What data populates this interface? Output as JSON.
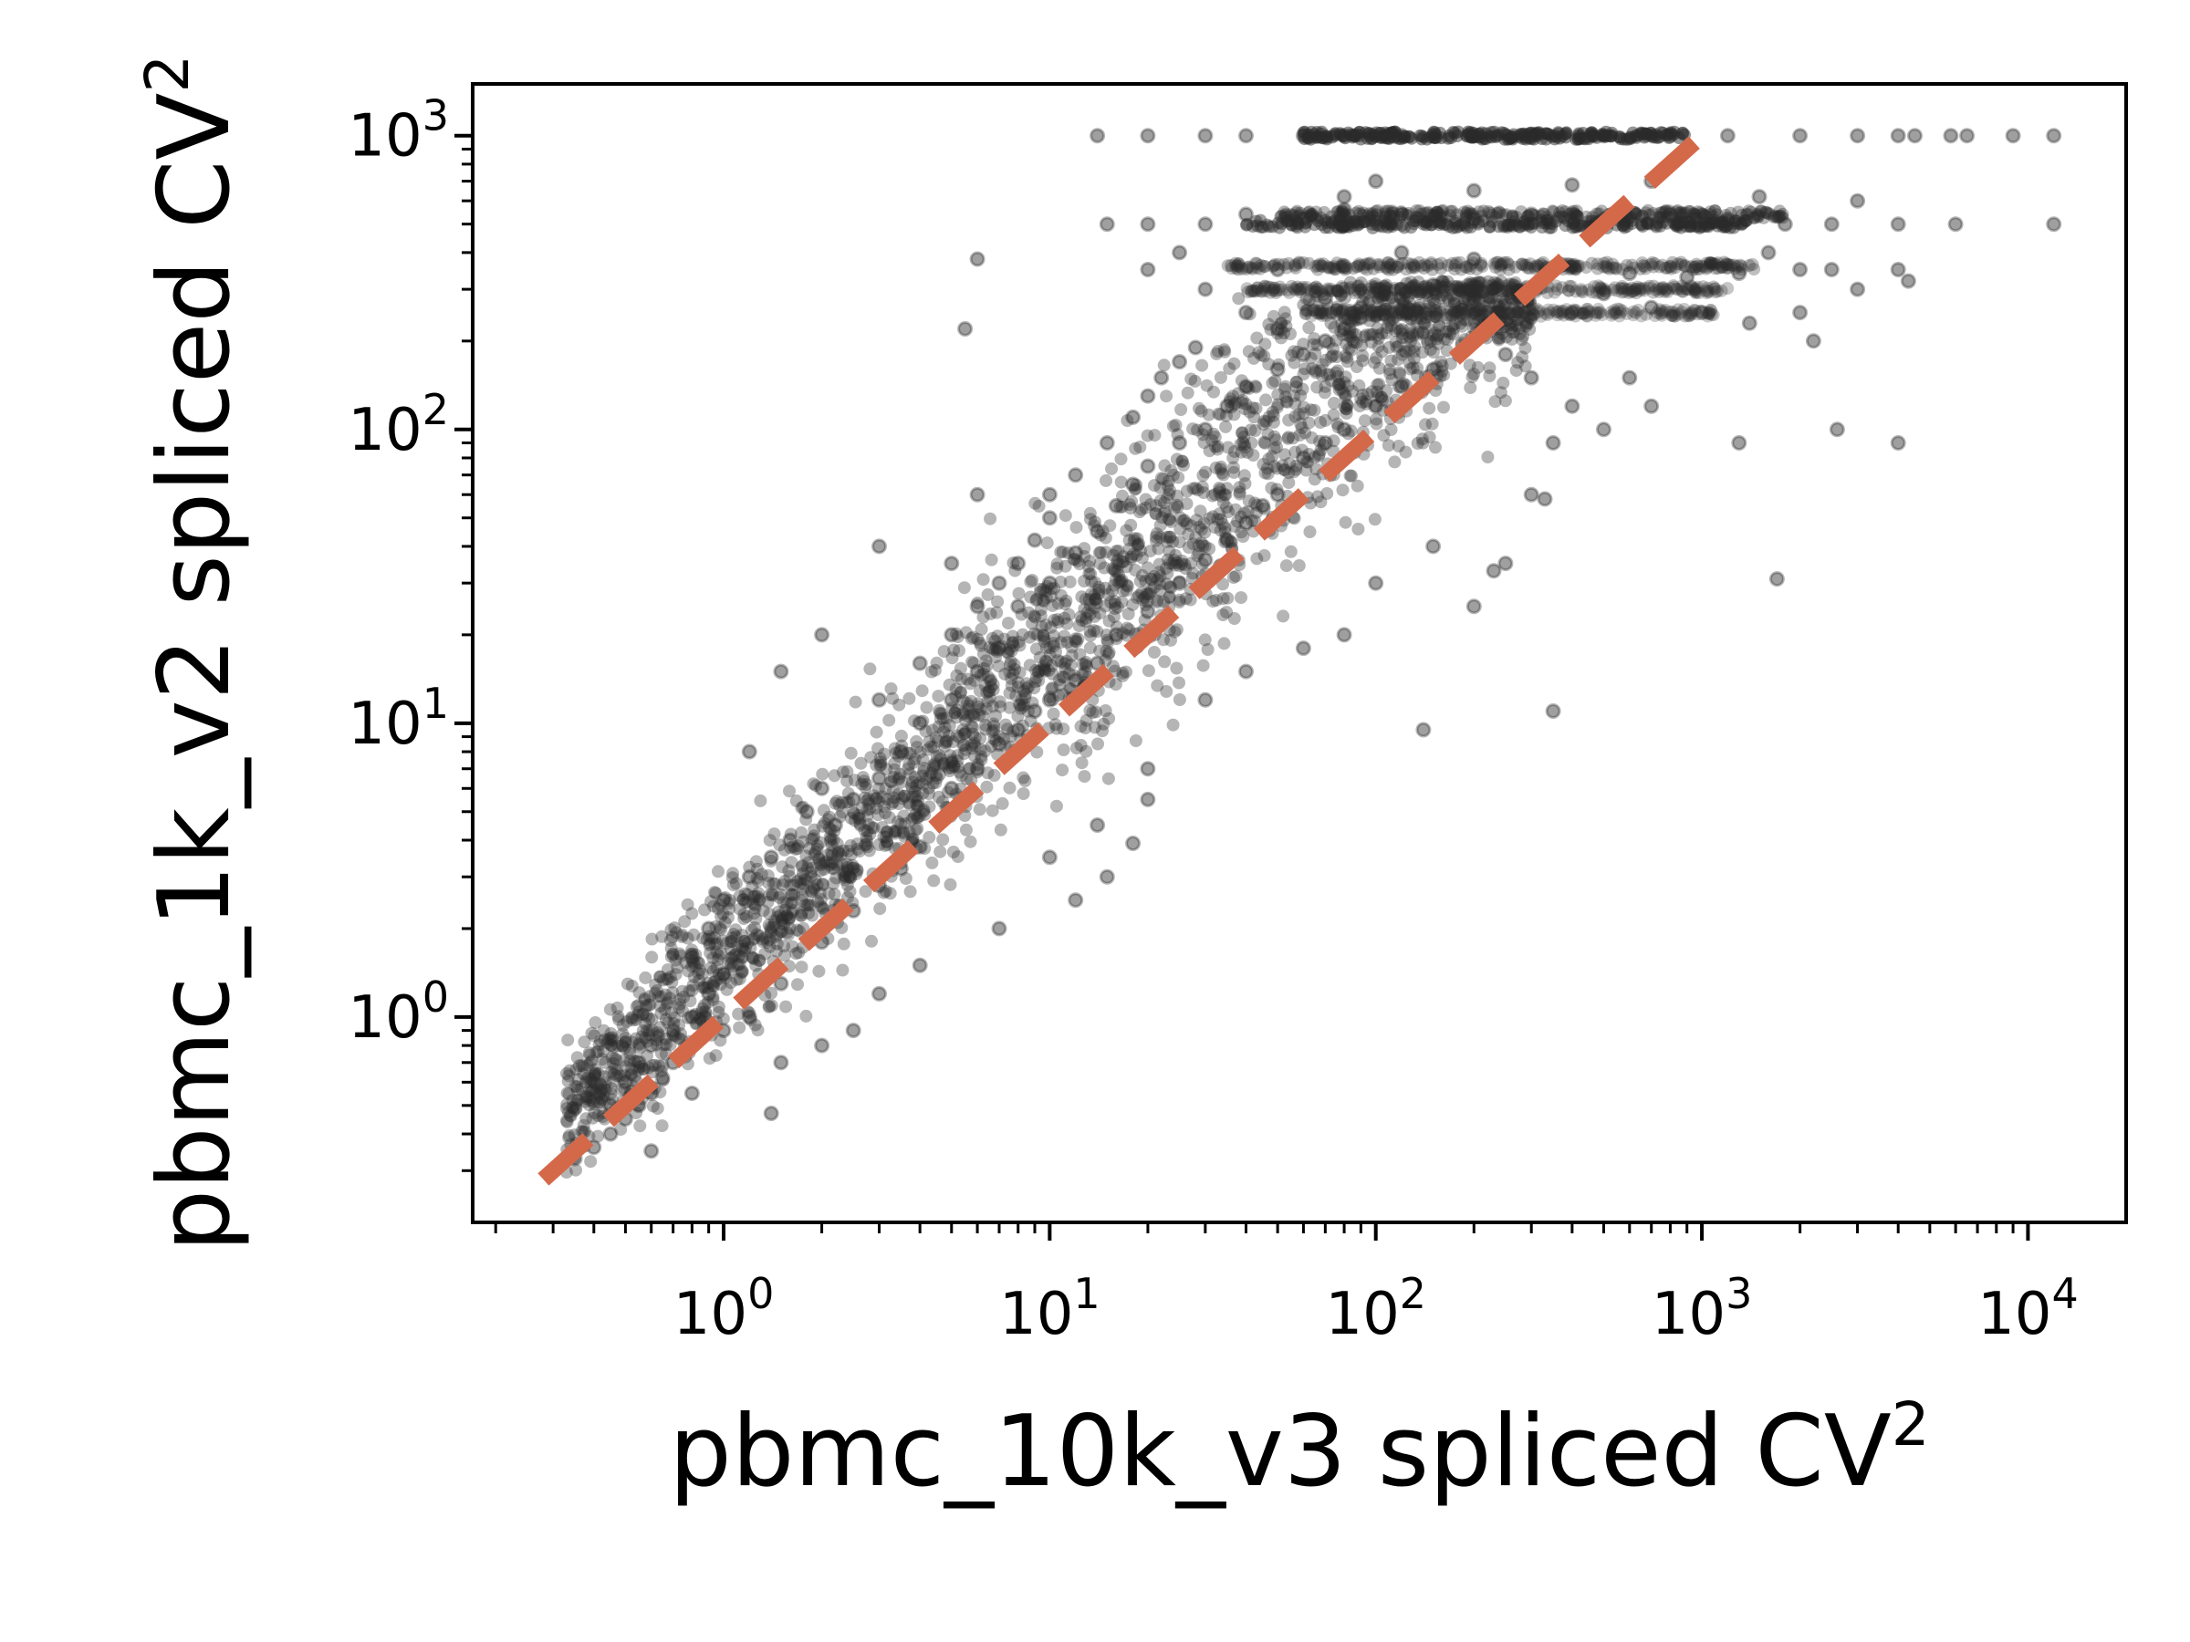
{
  "chart_data": {
    "type": "scatter",
    "title": "",
    "xlabel": "pbmc_10k_v3 spliced CV",
    "xlabel_sup": "2",
    "ylabel": "pbmc_1k_v2 spliced CV",
    "ylabel_sup": "2",
    "xscale": "log",
    "yscale": "log",
    "xlim": [
      0.17,
      20000
    ],
    "ylim": [
      0.2,
      1500
    ],
    "grid": false,
    "legend": "none",
    "x_ticks": [
      {
        "value": 1,
        "base": "10",
        "exp": "0"
      },
      {
        "value": 10,
        "base": "10",
        "exp": "1"
      },
      {
        "value": 100,
        "base": "10",
        "exp": "2"
      },
      {
        "value": 1000,
        "base": "10",
        "exp": "3"
      },
      {
        "value": 10000,
        "base": "10",
        "exp": "4"
      }
    ],
    "y_ticks": [
      {
        "value": 1,
        "base": "10",
        "exp": "0"
      },
      {
        "value": 10,
        "base": "10",
        "exp": "1"
      },
      {
        "value": 100,
        "base": "10",
        "exp": "2"
      },
      {
        "value": 1000,
        "base": "10",
        "exp": "3"
      }
    ],
    "reference_line": {
      "style": "dashed",
      "color": "#d4694a",
      "x": [
        0.28,
        1000
      ],
      "y": [
        0.28,
        1000
      ]
    },
    "point_color": "#2a2a2a",
    "series": [
      {
        "points": [
          [
            0.35,
            0.33
          ],
          [
            0.4,
            0.36
          ],
          [
            0.45,
            0.4
          ],
          [
            0.5,
            0.45
          ],
          [
            0.55,
            0.5
          ],
          [
            0.6,
            0.55
          ],
          [
            0.65,
            0.62
          ],
          [
            0.7,
            0.7
          ],
          [
            0.45,
            0.5
          ],
          [
            0.5,
            0.6
          ],
          [
            0.55,
            0.7
          ],
          [
            0.6,
            0.8
          ],
          [
            0.7,
            0.9
          ],
          [
            0.8,
            1.0
          ],
          [
            0.9,
            1.2
          ],
          [
            1.0,
            1.4
          ],
          [
            0.8,
            1.6
          ],
          [
            0.9,
            2.0
          ],
          [
            1.0,
            2.5
          ],
          [
            1.2,
            3.0
          ],
          [
            1.4,
            3.5
          ],
          [
            1.6,
            4.0
          ],
          [
            1.8,
            5.0
          ],
          [
            2.0,
            6.0
          ],
          [
            1.0,
            0.9
          ],
          [
            1.2,
            1.0
          ],
          [
            1.5,
            1.3
          ],
          [
            2.0,
            1.8
          ],
          [
            2.5,
            2.3
          ],
          [
            3.0,
            2.8
          ],
          [
            3.5,
            3.2
          ],
          [
            4.0,
            3.8
          ],
          [
            2.2,
            4.5
          ],
          [
            2.5,
            5.5
          ],
          [
            3.0,
            6.5
          ],
          [
            3.5,
            8.0
          ],
          [
            4.0,
            10.0
          ],
          [
            5.0,
            12.0
          ],
          [
            6.0,
            15.0
          ],
          [
            7.0,
            18.0
          ],
          [
            3.0,
            12.0
          ],
          [
            4.0,
            16.0
          ],
          [
            5.0,
            20.0
          ],
          [
            6.0,
            25.0
          ],
          [
            7.0,
            30.0
          ],
          [
            8.0,
            35.0
          ],
          [
            9.0,
            42.0
          ],
          [
            10.0,
            50.0
          ],
          [
            5.0,
            6.0
          ],
          [
            6.0,
            7.0
          ],
          [
            7.0,
            8.5
          ],
          [
            8.0,
            9.5
          ],
          [
            9.0,
            11.0
          ],
          [
            10.0,
            12.0
          ],
          [
            12.0,
            14.0
          ],
          [
            14.0,
            16.0
          ],
          [
            8.0,
            25.0
          ],
          [
            10.0,
            30.0
          ],
          [
            12.0,
            38.0
          ],
          [
            14.0,
            45.0
          ],
          [
            16.0,
            55.0
          ],
          [
            18.0,
            65.0
          ],
          [
            20.0,
            75.0
          ],
          [
            25.0,
            90.0
          ],
          [
            10.0,
            60.0
          ],
          [
            12.0,
            70.0
          ],
          [
            15.0,
            90.0
          ],
          [
            18.0,
            110.0
          ],
          [
            20.0,
            130.0
          ],
          [
            22.0,
            150.0
          ],
          [
            25.0,
            170.0
          ],
          [
            28.0,
            190.0
          ],
          [
            16.0,
            20.0
          ],
          [
            20.0,
            24.0
          ],
          [
            25.0,
            30.0
          ],
          [
            30.0,
            36.0
          ],
          [
            35.0,
            42.0
          ],
          [
            40.0,
            48.0
          ],
          [
            45.0,
            55.0
          ],
          [
            50.0,
            60.0
          ],
          [
            30.0,
            100.0
          ],
          [
            35.0,
            120.0
          ],
          [
            40.0,
            140.0
          ],
          [
            50.0,
            160.0
          ],
          [
            60.0,
            180.0
          ],
          [
            70.0,
            200.0
          ],
          [
            80.0,
            220.0
          ],
          [
            90.0,
            240.0
          ],
          [
            60.0,
            80.0
          ],
          [
            70.0,
            90.0
          ],
          [
            80.0,
            100.0
          ],
          [
            100.0,
            120.0
          ],
          [
            120.0,
            140.0
          ],
          [
            150.0,
            160.0
          ],
          [
            180.0,
            180.0
          ],
          [
            200.0,
            200.0
          ],
          [
            2.0,
            20.0
          ],
          [
            3.0,
            40.0
          ],
          [
            1.5,
            15.0
          ],
          [
            1.2,
            8.0
          ],
          [
            5.0,
            35.0
          ],
          [
            6.0,
            60.0
          ],
          [
            6.0,
            380.0
          ],
          [
            5.5,
            220.0
          ],
          [
            10.0,
            3.5
          ],
          [
            14.0,
            4.5
          ],
          [
            20.0,
            5.5
          ],
          [
            20.0,
            7.0
          ],
          [
            18.0,
            3.9
          ],
          [
            15.0,
            3.0
          ],
          [
            12.0,
            2.5
          ],
          [
            7.0,
            2.0
          ],
          [
            4.0,
            1.5
          ],
          [
            3.0,
            1.2
          ],
          [
            2.5,
            0.9
          ],
          [
            2.0,
            0.8
          ],
          [
            1.5,
            0.7
          ],
          [
            1.4,
            0.47
          ],
          [
            0.8,
            0.55
          ],
          [
            0.6,
            0.35
          ],
          [
            30.0,
            12.0
          ],
          [
            40.0,
            15.0
          ],
          [
            60.0,
            18.0
          ],
          [
            80.0,
            20.0
          ],
          [
            100.0,
            30.0
          ],
          [
            150.0,
            40.0
          ],
          [
            200.0,
            25.0
          ],
          [
            250.0,
            35.0
          ],
          [
            300.0,
            60.0
          ],
          [
            350.0,
            90.0
          ],
          [
            400.0,
            120.0
          ],
          [
            300.0,
            150.0
          ],
          [
            250.0,
            180.0
          ],
          [
            500.0,
            100.0
          ],
          [
            600.0,
            150.0
          ],
          [
            700.0,
            120.0
          ],
          [
            350.0,
            11.0
          ],
          [
            140.0,
            9.5
          ],
          [
            1700.0,
            31.0
          ],
          [
            2600.0,
            100.0
          ],
          [
            4000.0,
            90.0
          ],
          [
            1300.0,
            90.0
          ],
          [
            330.0,
            58.0
          ],
          [
            230.0,
            33.0
          ],
          [
            40.0,
            250.0
          ],
          [
            50.0,
            220.0
          ],
          [
            70.0,
            280.0
          ],
          [
            90.0,
            260.0
          ],
          [
            120.0,
            300.0
          ],
          [
            150.0,
            310.0
          ],
          [
            200.0,
            280.0
          ],
          [
            300.0,
            300.0
          ],
          [
            400.0,
            250.0
          ],
          [
            500.0,
            290.0
          ],
          [
            700.0,
            260.0
          ],
          [
            1000.0,
            250.0
          ],
          [
            1400.0,
            230.0
          ],
          [
            2000.0,
            250.0
          ],
          [
            3000.0,
            300.0
          ],
          [
            2200.0,
            200.0
          ],
          [
            20.0,
            350.0
          ],
          [
            25.0,
            400.0
          ],
          [
            30.0,
            300.0
          ],
          [
            50.0,
            350.0
          ],
          [
            80.0,
            360.0
          ],
          [
            120.0,
            400.0
          ],
          [
            200.0,
            380.0
          ],
          [
            400.0,
            360.0
          ],
          [
            600.0,
            340.0
          ],
          [
            900.0,
            330.0
          ],
          [
            1300.0,
            340.0
          ],
          [
            2000.0,
            350.0
          ],
          [
            4000.0,
            350.0
          ],
          [
            1600.0,
            400.0
          ],
          [
            2500.0,
            350.0
          ],
          [
            4300.0,
            320.0
          ],
          [
            15.0,
            500.0
          ],
          [
            20.0,
            500.0
          ],
          [
            30.0,
            500.0
          ],
          [
            40.0,
            540.0
          ],
          [
            60.0,
            520.0
          ],
          [
            80.0,
            560.0
          ],
          [
            120.0,
            540.0
          ],
          [
            200.0,
            520.0
          ],
          [
            300.0,
            540.0
          ],
          [
            500.0,
            520.0
          ],
          [
            800.0,
            540.0
          ],
          [
            1200.0,
            520.0
          ],
          [
            1800.0,
            500.0
          ],
          [
            2500.0,
            500.0
          ],
          [
            4000.0,
            500.0
          ],
          [
            6000.0,
            500.0
          ],
          [
            12000.0,
            500.0
          ],
          [
            3000.0,
            600.0
          ],
          [
            1500.0,
            620.0
          ],
          [
            700.0,
            700.0
          ],
          [
            400.0,
            680.0
          ],
          [
            200.0,
            650.0
          ],
          [
            100.0,
            700.0
          ],
          [
            80.0,
            620.0
          ],
          [
            14.0,
            1000.0
          ],
          [
            20.0,
            1000.0
          ],
          [
            30.0,
            1000.0
          ],
          [
            40.0,
            1000.0
          ],
          [
            60.0,
            1000.0
          ],
          [
            80.0,
            1000.0
          ],
          [
            120.0,
            1000.0
          ],
          [
            200.0,
            1000.0
          ],
          [
            300.0,
            1000.0
          ],
          [
            500.0,
            1000.0
          ],
          [
            800.0,
            1000.0
          ],
          [
            1200.0,
            1000.0
          ],
          [
            2000.0,
            1000.0
          ],
          [
            3000.0,
            1000.0
          ],
          [
            4500.0,
            1000.0
          ],
          [
            6500.0,
            1000.0
          ],
          [
            9000.0,
            1000.0
          ],
          [
            12000.0,
            1000.0
          ],
          [
            5800.0,
            1000.0
          ],
          [
            4000.0,
            1000.0
          ]
        ]
      }
    ]
  }
}
